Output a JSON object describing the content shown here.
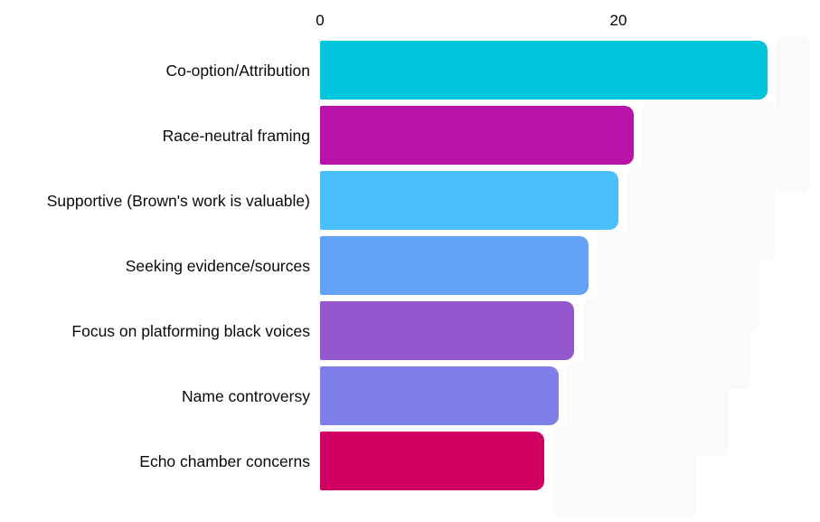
{
  "chart_data": {
    "type": "bar",
    "orientation": "horizontal",
    "title": "",
    "xlabel": "",
    "ylabel": "",
    "categories": [
      "Co-option/Attribution",
      "Race-neutral framing",
      "Supportive (Brown's work is valuable)",
      "Seeking evidence/sources",
      "Focus on platforming black voices",
      "Name controversy",
      "Echo chamber concerns"
    ],
    "values": [
      30,
      21,
      20,
      18,
      17,
      16,
      15
    ],
    "bar_colors": [
      "#00c5db",
      "#b812a8",
      "#49bffb",
      "#63a3f7",
      "#9557ce",
      "#7e7fe8",
      "#d10063"
    ],
    "x_ticks": [
      "0",
      "20"
    ],
    "x_tick_values": [
      0,
      20
    ],
    "xlim": [
      0,
      33.5
    ],
    "axis_position": "top",
    "grid": false,
    "legend": false,
    "background_color": "#ffffff",
    "artifact_color": "#fafafa"
  }
}
